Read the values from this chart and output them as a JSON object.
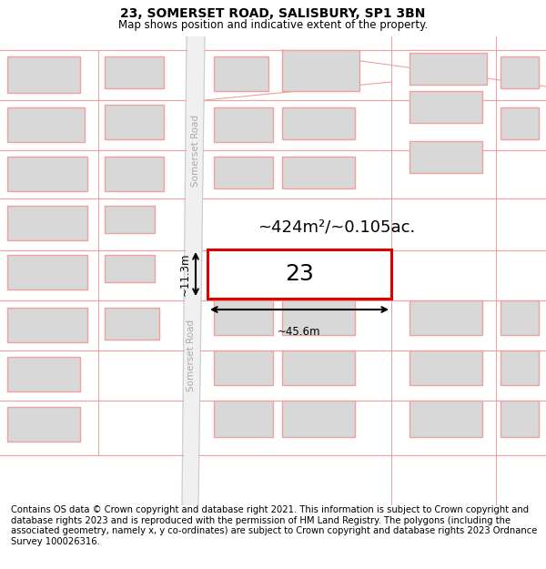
{
  "title": "23, SOMERSET ROAD, SALISBURY, SP1 3BN",
  "subtitle": "Map shows position and indicative extent of the property.",
  "footer": "Contains OS data © Crown copyright and database right 2021. This information is subject to Crown copyright and database rights 2023 and is reproduced with the permission of HM Land Registry. The polygons (including the associated geometry, namely x, y co-ordinates) are subject to Crown copyright and database rights 2023 Ordnance Survey 100026316.",
  "area_label": "~424m²/~0.105ac.",
  "width_label": "~45.6m",
  "height_label": "~11.3m",
  "number_label": "23",
  "bg": "#ffffff",
  "road_fill": "#f5f5f5",
  "road_edge": "#cccccc",
  "lot_line": "#f0a0a0",
  "building_fill": "#d8d8d8",
  "building_edge": "#f0a0a0",
  "red_box": "#dd0000",
  "street_text_color": "#aaaaaa",
  "title_fontsize": 10,
  "subtitle_fontsize": 8.5,
  "footer_fontsize": 7.2,
  "area_fontsize": 13,
  "num_fontsize": 18,
  "dim_fontsize": 8.5,
  "street_fontsize": 7.5
}
